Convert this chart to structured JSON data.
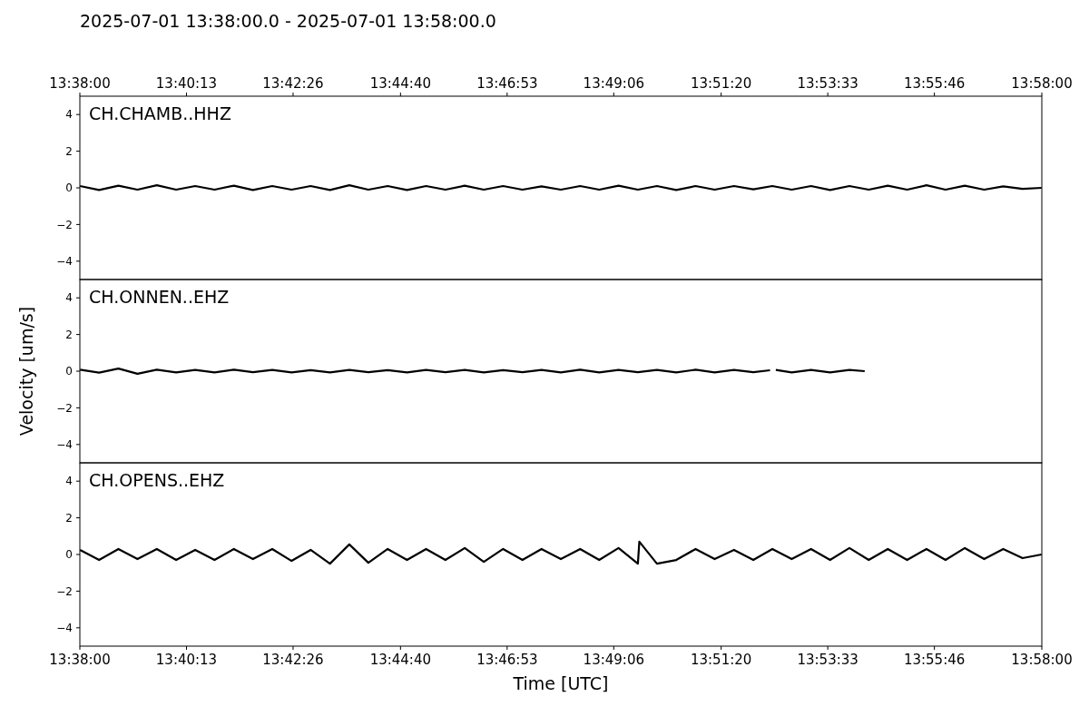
{
  "chart_data": [
    {
      "type": "line",
      "title": "2025-07-01 13:38:00.0 - 2025-07-01 13:58:00.0",
      "tick_labels": "y",
      "xlim": [
        13.633333,
        13.966667
      ],
      "ylim": [
        -5,
        5
      ],
      "yticks": [
        -4,
        -2,
        0,
        2,
        4
      ],
      "x2lim": [
        13.633333,
        13.966667
      ],
      "x2ticks": [
        {
          "value": 13.633333,
          "label": "13:38:00"
        },
        {
          "value": 13.670278,
          "label": "13:40:13"
        },
        {
          "value": 13.707222,
          "label": "13:42:26"
        },
        {
          "value": 13.744444,
          "label": "13:44:40"
        },
        {
          "value": 13.781389,
          "label": "13:46:53"
        },
        {
          "value": 13.818333,
          "label": "13:49:06"
        },
        {
          "value": 13.855556,
          "label": "13:51:20"
        },
        {
          "value": 13.8925,
          "label": "13:53:33"
        },
        {
          "value": 13.929444,
          "label": "13:55:46"
        },
        {
          "value": 13.966667,
          "label": "13:58:00"
        }
      ],
      "x": [
        13.6334,
        13.64,
        13.6467,
        13.6533,
        13.66,
        13.6667,
        13.6733,
        13.68,
        13.6867,
        13.6933,
        13.7,
        13.7067,
        13.7133,
        13.72,
        13.7267,
        13.7333,
        13.74,
        13.7467,
        13.7533,
        13.76,
        13.7667,
        13.7733,
        13.78,
        13.7867,
        13.7933,
        13.8,
        13.8067,
        13.8133,
        13.82,
        13.8267,
        13.8333,
        13.84,
        13.8467,
        13.8533,
        13.86,
        13.8667,
        13.8733,
        13.88,
        13.8867,
        13.8933,
        13.9,
        13.9067,
        13.9133,
        13.92,
        13.9267,
        13.9333,
        13.94,
        13.9467,
        13.9533,
        13.96,
        13.9666
      ],
      "series": [
        {
          "name": "CH.CHAMB..HHZ",
          "color": "#000000",
          "values": [
            0.1,
            -0.12,
            0.12,
            -0.1,
            0.14,
            -0.1,
            0.1,
            -0.1,
            0.12,
            -0.12,
            0.1,
            -0.1,
            0.1,
            -0.12,
            0.14,
            -0.1,
            0.1,
            -0.12,
            0.1,
            -0.1,
            0.12,
            -0.1,
            0.1,
            -0.1,
            0.08,
            -0.1,
            0.1,
            -0.1,
            0.12,
            -0.1,
            0.1,
            -0.12,
            0.1,
            -0.1,
            0.1,
            -0.08,
            0.1,
            -0.1,
            0.1,
            -0.12,
            0.1,
            -0.1,
            0.12,
            -0.1,
            0.14,
            -0.1,
            0.12,
            -0.1,
            0.08,
            -0.06,
            0
          ]
        }
      ]
    },
    {
      "type": "line",
      "ylabel": "Velocity [um/s]",
      "tick_labels": "y",
      "xlim": [
        13.633333,
        13.966667
      ],
      "ylim": [
        -5,
        5
      ],
      "yticks": [
        -4,
        -2,
        0,
        2,
        4
      ],
      "x": [
        13.6334,
        13.64,
        13.6467,
        13.6533,
        13.66,
        13.6667,
        13.6733,
        13.68,
        13.6867,
        13.6933,
        13.7,
        13.7067,
        13.7133,
        13.72,
        13.7267,
        13.7333,
        13.74,
        13.7467,
        13.7533,
        13.76,
        13.7667,
        13.7733,
        13.78,
        13.7867,
        13.7933,
        13.8,
        13.8067,
        13.8133,
        13.82,
        13.8267,
        13.8333,
        13.84,
        13.8467,
        13.8533,
        13.86,
        13.8667,
        13.8725,
        13.8735,
        13.8745,
        13.88,
        13.8867,
        13.8933,
        13.9,
        13.9053
      ],
      "series": [
        {
          "name": "CH.ONNEN..EHZ",
          "color": "#000000",
          "values": [
            0.08,
            -0.08,
            0.14,
            -0.14,
            0.08,
            -0.07,
            0.07,
            -0.07,
            0.08,
            -0.06,
            0.07,
            -0.07,
            0.06,
            -0.07,
            0.07,
            -0.06,
            0.06,
            -0.07,
            0.07,
            -0.06,
            0.07,
            -0.07,
            0.06,
            -0.06,
            0.07,
            -0.07,
            0.08,
            -0.07,
            0.07,
            -0.06,
            0.07,
            -0.07,
            0.08,
            -0.07,
            0.07,
            -0.06,
            0.05,
            null,
            0.07,
            -0.07,
            0.07,
            -0.07,
            0.07,
            0
          ]
        }
      ]
    },
    {
      "type": "line",
      "xlabel": "Time [UTC]",
      "xlim": [
        13.633333,
        13.966667
      ],
      "ylim": [
        -5,
        5
      ],
      "yticks": [
        -4,
        -2,
        0,
        2,
        4
      ],
      "xticks": [
        {
          "value": 13.633333,
          "label": "13:38:00"
        },
        {
          "value": 13.670278,
          "label": "13:40:13"
        },
        {
          "value": 13.707222,
          "label": "13:42:26"
        },
        {
          "value": 13.744444,
          "label": "13:44:40"
        },
        {
          "value": 13.781389,
          "label": "13:46:53"
        },
        {
          "value": 13.818333,
          "label": "13:49:06"
        },
        {
          "value": 13.855556,
          "label": "13:51:20"
        },
        {
          "value": 13.8925,
          "label": "13:53:33"
        },
        {
          "value": 13.929444,
          "label": "13:55:46"
        },
        {
          "value": 13.966667,
          "label": "13:58:00"
        }
      ],
      "x": [
        13.6334,
        13.64,
        13.6467,
        13.6533,
        13.66,
        13.6667,
        13.6733,
        13.68,
        13.6867,
        13.6933,
        13.7,
        13.7067,
        13.7133,
        13.72,
        13.7267,
        13.7333,
        13.74,
        13.7467,
        13.7533,
        13.76,
        13.7667,
        13.7733,
        13.78,
        13.7867,
        13.7933,
        13.8,
        13.8067,
        13.8133,
        13.82,
        13.8267,
        13.8272,
        13.8333,
        13.84,
        13.8467,
        13.8533,
        13.86,
        13.8667,
        13.8733,
        13.88,
        13.8867,
        13.8933,
        13.9,
        13.9067,
        13.9133,
        13.92,
        13.9267,
        13.9333,
        13.94,
        13.9467,
        13.9533,
        13.96,
        13.9666
      ],
      "series": [
        {
          "name": "CH.OPENS..EHZ",
          "color": "#000000",
          "values": [
            0.25,
            -0.3,
            0.3,
            -0.25,
            0.3,
            -0.3,
            0.25,
            -0.3,
            0.3,
            -0.25,
            0.3,
            -0.35,
            0.25,
            -0.5,
            0.55,
            -0.45,
            0.3,
            -0.3,
            0.3,
            -0.3,
            0.35,
            -0.4,
            0.3,
            -0.3,
            0.3,
            -0.25,
            0.3,
            -0.3,
            0.35,
            -0.5,
            0.7,
            -0.5,
            -0.3,
            0.3,
            -0.25,
            0.25,
            -0.3,
            0.3,
            -0.25,
            0.3,
            -0.3,
            0.35,
            -0.3,
            0.3,
            -0.3,
            0.3,
            -0.3,
            0.35,
            -0.25,
            0.3,
            -0.2,
            0
          ]
        }
      ]
    }
  ]
}
